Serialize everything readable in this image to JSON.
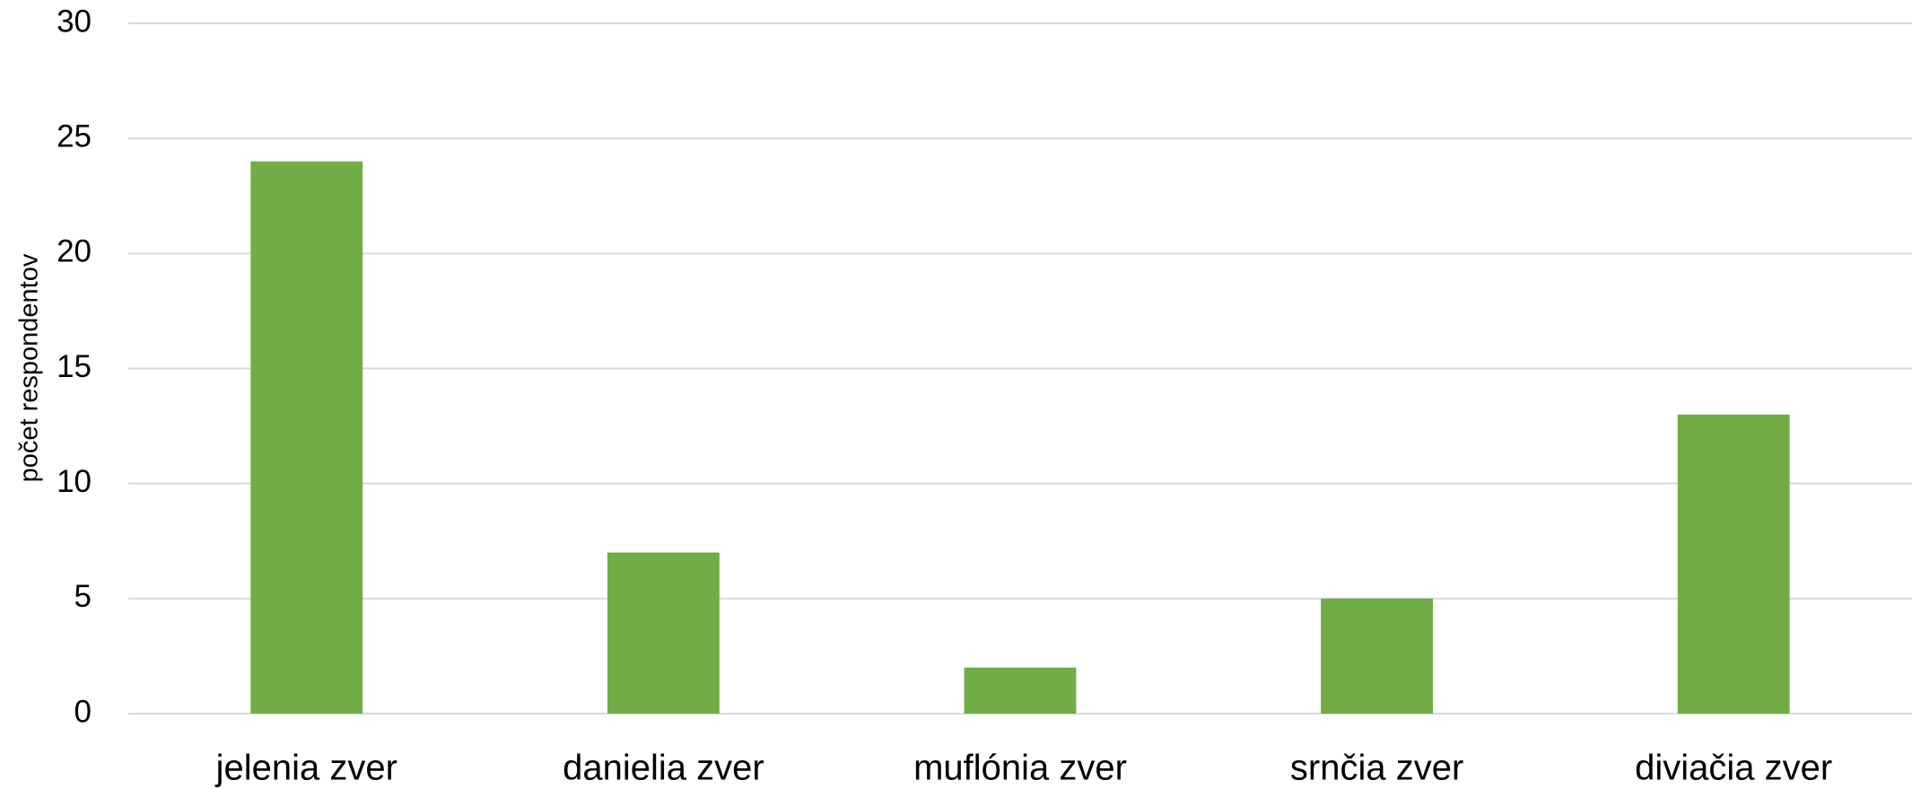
{
  "chart_data": {
    "type": "bar",
    "y_label": "počet respondentov",
    "categories": [
      "jelenia zver",
      "danielia zver",
      "muflónia zver",
      "srnčia zver",
      "diviačia zver"
    ],
    "values": [
      24,
      7,
      2,
      5,
      13
    ],
    "color": "#70ad47",
    "ylim": [
      0,
      30
    ],
    "yticks": [
      0,
      5,
      10,
      15,
      20,
      25,
      30
    ],
    "grid": true
  }
}
